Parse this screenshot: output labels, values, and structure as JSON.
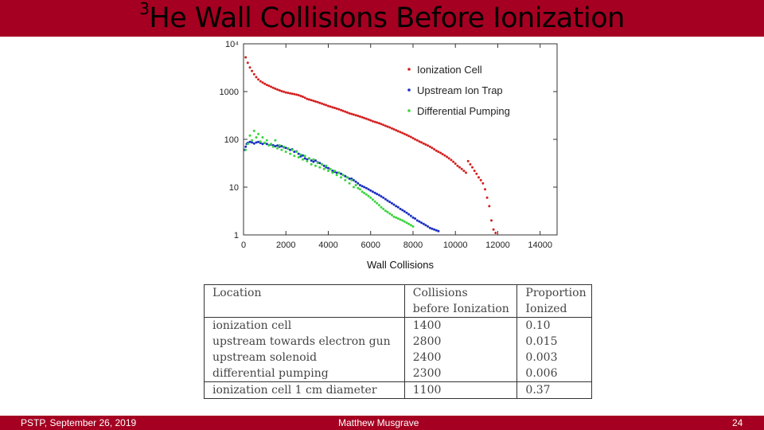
{
  "header": {
    "title_sup": "3",
    "title_text": "He Wall Collisions Before Ionization"
  },
  "chart_data": {
    "type": "scatter",
    "xlabel": "Wall Collisions",
    "ylabel": "",
    "xscale": "linear",
    "yscale": "log",
    "xlim": [
      0,
      14800
    ],
    "ylim": [
      1,
      10000
    ],
    "xticks": [
      0,
      2000,
      4000,
      6000,
      8000,
      10000,
      12000,
      14000
    ],
    "xtick_labels": [
      "0",
      "2000",
      "4000",
      "6000",
      "8000",
      "10000",
      "12000",
      "14000"
    ],
    "yticks": [
      1,
      10,
      100,
      1000,
      10000
    ],
    "ytick_labels": [
      "1",
      "10",
      "100",
      "1000",
      "10⁴"
    ],
    "legend_position": "top-right",
    "series": [
      {
        "name": "Ionization Cell",
        "color": "#d42020",
        "points": [
          [
            100,
            5200
          ],
          [
            200,
            4000
          ],
          [
            300,
            3200
          ],
          [
            400,
            2700
          ],
          [
            500,
            2300
          ],
          [
            600,
            2000
          ],
          [
            700,
            1800
          ],
          [
            800,
            1650
          ],
          [
            900,
            1550
          ],
          [
            1000,
            1450
          ],
          [
            1100,
            1380
          ],
          [
            1200,
            1320
          ],
          [
            1300,
            1260
          ],
          [
            1400,
            1200
          ],
          [
            1500,
            1150
          ],
          [
            1600,
            1100
          ],
          [
            1700,
            1060
          ],
          [
            1800,
            1020
          ],
          [
            1900,
            990
          ],
          [
            2000,
            960
          ],
          [
            2100,
            940
          ],
          [
            2200,
            920
          ],
          [
            2300,
            900
          ],
          [
            2400,
            880
          ],
          [
            2500,
            860
          ],
          [
            2600,
            840
          ],
          [
            2700,
            810
          ],
          [
            2800,
            780
          ],
          [
            2900,
            740
          ],
          [
            3000,
            700
          ],
          [
            3100,
            680
          ],
          [
            3200,
            660
          ],
          [
            3300,
            640
          ],
          [
            3400,
            620
          ],
          [
            3500,
            600
          ],
          [
            3600,
            580
          ],
          [
            3700,
            560
          ],
          [
            3800,
            540
          ],
          [
            3900,
            520
          ],
          [
            4000,
            500
          ],
          [
            4100,
            485
          ],
          [
            4200,
            470
          ],
          [
            4300,
            455
          ],
          [
            4400,
            440
          ],
          [
            4500,
            425
          ],
          [
            4600,
            410
          ],
          [
            4700,
            395
          ],
          [
            4800,
            380
          ],
          [
            4900,
            365
          ],
          [
            5000,
            350
          ],
          [
            5100,
            340
          ],
          [
            5200,
            330
          ],
          [
            5300,
            320
          ],
          [
            5400,
            310
          ],
          [
            5500,
            300
          ],
          [
            5600,
            290
          ],
          [
            5700,
            280
          ],
          [
            5800,
            270
          ],
          [
            5900,
            260
          ],
          [
            6000,
            250
          ],
          [
            6100,
            240
          ],
          [
            6200,
            232
          ],
          [
            6300,
            225
          ],
          [
            6400,
            218
          ],
          [
            6500,
            210
          ],
          [
            6600,
            200
          ],
          [
            6700,
            192
          ],
          [
            6800,
            185
          ],
          [
            6900,
            178
          ],
          [
            7000,
            170
          ],
          [
            7100,
            162
          ],
          [
            7200,
            155
          ],
          [
            7300,
            148
          ],
          [
            7400,
            142
          ],
          [
            7500,
            136
          ],
          [
            7600,
            130
          ],
          [
            7700,
            124
          ],
          [
            7800,
            118
          ],
          [
            7900,
            112
          ],
          [
            8000,
            106
          ],
          [
            8100,
            100
          ],
          [
            8200,
            95
          ],
          [
            8300,
            90
          ],
          [
            8400,
            86
          ],
          [
            8500,
            82
          ],
          [
            8600,
            78
          ],
          [
            8700,
            74
          ],
          [
            8800,
            70
          ],
          [
            8900,
            66
          ],
          [
            9000,
            62
          ],
          [
            9100,
            58
          ],
          [
            9200,
            55
          ],
          [
            9300,
            52
          ],
          [
            9400,
            49
          ],
          [
            9500,
            46
          ],
          [
            9600,
            43
          ],
          [
            9700,
            40
          ],
          [
            9800,
            37
          ],
          [
            9900,
            34
          ],
          [
            10000,
            31
          ],
          [
            10100,
            28
          ],
          [
            10200,
            26
          ],
          [
            10300,
            24
          ],
          [
            10400,
            22
          ],
          [
            10500,
            20
          ],
          [
            10600,
            35
          ],
          [
            10700,
            30
          ],
          [
            10800,
            26
          ],
          [
            10900,
            22
          ],
          [
            11000,
            19
          ],
          [
            11100,
            16
          ],
          [
            11200,
            14
          ],
          [
            11300,
            12
          ],
          [
            11400,
            9
          ],
          [
            11500,
            6
          ],
          [
            11600,
            4
          ],
          [
            11700,
            2
          ],
          [
            11800,
            1.3
          ],
          [
            11900,
            1.1
          ]
        ]
      },
      {
        "name": "Upstream Ion Trap",
        "color": "#1a2ec0",
        "points": [
          [
            50,
            60
          ],
          [
            100,
            70
          ],
          [
            150,
            80
          ],
          [
            200,
            84
          ],
          [
            300,
            88
          ],
          [
            400,
            86
          ],
          [
            500,
            82
          ],
          [
            600,
            86
          ],
          [
            700,
            88
          ],
          [
            800,
            84
          ],
          [
            900,
            80
          ],
          [
            1000,
            84
          ],
          [
            1100,
            80
          ],
          [
            1200,
            76
          ],
          [
            1300,
            78
          ],
          [
            1400,
            75
          ],
          [
            1500,
            72
          ],
          [
            1600,
            74
          ],
          [
            1700,
            70
          ],
          [
            1800,
            72
          ],
          [
            1900,
            68
          ],
          [
            2000,
            66
          ],
          [
            2100,
            64
          ],
          [
            2200,
            60
          ],
          [
            2300,
            62
          ],
          [
            2400,
            55
          ],
          [
            2500,
            56
          ],
          [
            2600,
            50
          ],
          [
            2700,
            44
          ],
          [
            2800,
            46
          ],
          [
            2900,
            40
          ],
          [
            3000,
            38
          ],
          [
            3100,
            40
          ],
          [
            3200,
            36
          ],
          [
            3300,
            34
          ],
          [
            3400,
            36
          ],
          [
            3500,
            33
          ],
          [
            3600,
            32
          ],
          [
            3700,
            30
          ],
          [
            3800,
            28
          ],
          [
            3900,
            26
          ],
          [
            4000,
            25
          ],
          [
            4100,
            24
          ],
          [
            4200,
            22
          ],
          [
            4300,
            21
          ],
          [
            4400,
            20
          ],
          [
            4500,
            20
          ],
          [
            4600,
            19
          ],
          [
            4700,
            18
          ],
          [
            4800,
            17
          ],
          [
            4900,
            16
          ],
          [
            5000,
            15
          ],
          [
            5100,
            15
          ],
          [
            5200,
            14
          ],
          [
            5300,
            13
          ],
          [
            5400,
            12
          ],
          [
            5500,
            11
          ],
          [
            5600,
            10.5
          ],
          [
            5700,
            10
          ],
          [
            5800,
            9.5
          ],
          [
            5900,
            9
          ],
          [
            6000,
            8.5
          ],
          [
            6100,
            8
          ],
          [
            6200,
            7.6
          ],
          [
            6300,
            7.2
          ],
          [
            6400,
            6.8
          ],
          [
            6500,
            6.4
          ],
          [
            6600,
            6
          ],
          [
            6700,
            5.6
          ],
          [
            6800,
            5.2
          ],
          [
            6900,
            4.9
          ],
          [
            7000,
            4.6
          ],
          [
            7100,
            4.3
          ],
          [
            7200,
            4
          ],
          [
            7300,
            3.8
          ],
          [
            7400,
            3.5
          ],
          [
            7500,
            3.3
          ],
          [
            7600,
            3.1
          ],
          [
            7700,
            2.9
          ],
          [
            7800,
            2.7
          ],
          [
            7900,
            2.5
          ],
          [
            8000,
            2.3
          ],
          [
            8100,
            2.2
          ],
          [
            8200,
            2
          ],
          [
            8300,
            1.9
          ],
          [
            8400,
            1.8
          ],
          [
            8500,
            1.7
          ],
          [
            8600,
            1.6
          ],
          [
            8700,
            1.5
          ],
          [
            8800,
            1.4
          ],
          [
            8900,
            1.35
          ],
          [
            9000,
            1.3
          ],
          [
            9100,
            1.25
          ],
          [
            9200,
            1.2
          ]
        ]
      },
      {
        "name": "Differential Pumping",
        "color": "#3ad43a",
        "points": [
          [
            100,
            60
          ],
          [
            200,
            80
          ],
          [
            300,
            120
          ],
          [
            400,
            95
          ],
          [
            500,
            150
          ],
          [
            600,
            110
          ],
          [
            700,
            130
          ],
          [
            800,
            90
          ],
          [
            900,
            110
          ],
          [
            1000,
            85
          ],
          [
            1100,
            95
          ],
          [
            1200,
            75
          ],
          [
            1300,
            80
          ],
          [
            1400,
            70
          ],
          [
            1500,
            95
          ],
          [
            1600,
            65
          ],
          [
            1700,
            75
          ],
          [
            1800,
            60
          ],
          [
            1900,
            70
          ],
          [
            2000,
            55
          ],
          [
            2100,
            65
          ],
          [
            2200,
            50
          ],
          [
            2300,
            60
          ],
          [
            2400,
            45
          ],
          [
            2500,
            55
          ],
          [
            2600,
            42
          ],
          [
            2700,
            48
          ],
          [
            2800,
            38
          ],
          [
            2900,
            45
          ],
          [
            3000,
            35
          ],
          [
            3100,
            40
          ],
          [
            3200,
            30
          ],
          [
            3300,
            38
          ],
          [
            3400,
            28
          ],
          [
            3500,
            32
          ],
          [
            3600,
            26
          ],
          [
            3700,
            30
          ],
          [
            3800,
            24
          ],
          [
            3900,
            28
          ],
          [
            4000,
            22
          ],
          [
            4100,
            24
          ],
          [
            4200,
            20
          ],
          [
            4300,
            22
          ],
          [
            4400,
            18
          ],
          [
            4500,
            20
          ],
          [
            4600,
            16
          ],
          [
            4700,
            18
          ],
          [
            4800,
            14
          ],
          [
            4900,
            16
          ],
          [
            5000,
            12
          ],
          [
            5100,
            14
          ],
          [
            5200,
            10
          ],
          [
            5300,
            11
          ],
          [
            5400,
            9.5
          ],
          [
            5500,
            9
          ],
          [
            5600,
            8
          ],
          [
            5700,
            7.5
          ],
          [
            5800,
            7
          ],
          [
            5900,
            6.5
          ],
          [
            6000,
            6
          ],
          [
            6100,
            5.5
          ],
          [
            6200,
            5
          ],
          [
            6300,
            4.6
          ],
          [
            6400,
            4.2
          ],
          [
            6500,
            3.8
          ],
          [
            6600,
            3.5
          ],
          [
            6700,
            3.2
          ],
          [
            6800,
            3
          ],
          [
            6900,
            2.8
          ],
          [
            7000,
            2.6
          ],
          [
            7100,
            2.4
          ],
          [
            7200,
            2.3
          ],
          [
            7300,
            2.2
          ],
          [
            7400,
            2.1
          ],
          [
            7500,
            2
          ],
          [
            7600,
            1.9
          ],
          [
            7700,
            1.8
          ],
          [
            7800,
            1.7
          ],
          [
            7900,
            1.6
          ],
          [
            8000,
            1.5
          ]
        ]
      }
    ]
  },
  "table": {
    "headers": [
      [
        "Location",
        ""
      ],
      [
        "Collisions",
        "before Ionization"
      ],
      [
        "Proportion",
        "Ionized"
      ]
    ],
    "rows": [
      [
        "ionization cell",
        "1400",
        "0.10"
      ],
      [
        "upstream towards electron gun",
        "2800",
        "0.015"
      ],
      [
        "upstream solenoid",
        "2400",
        "0.003"
      ],
      [
        "differential pumping",
        "2300",
        "0.006"
      ],
      [
        "ionization cell 1 cm diameter",
        "1100",
        "0.37"
      ]
    ]
  },
  "footer": {
    "left": "PSTP, September 26, 2019",
    "center": "Matthew Musgrave",
    "right": "24"
  },
  "colors": {
    "bar": "#a50021"
  }
}
